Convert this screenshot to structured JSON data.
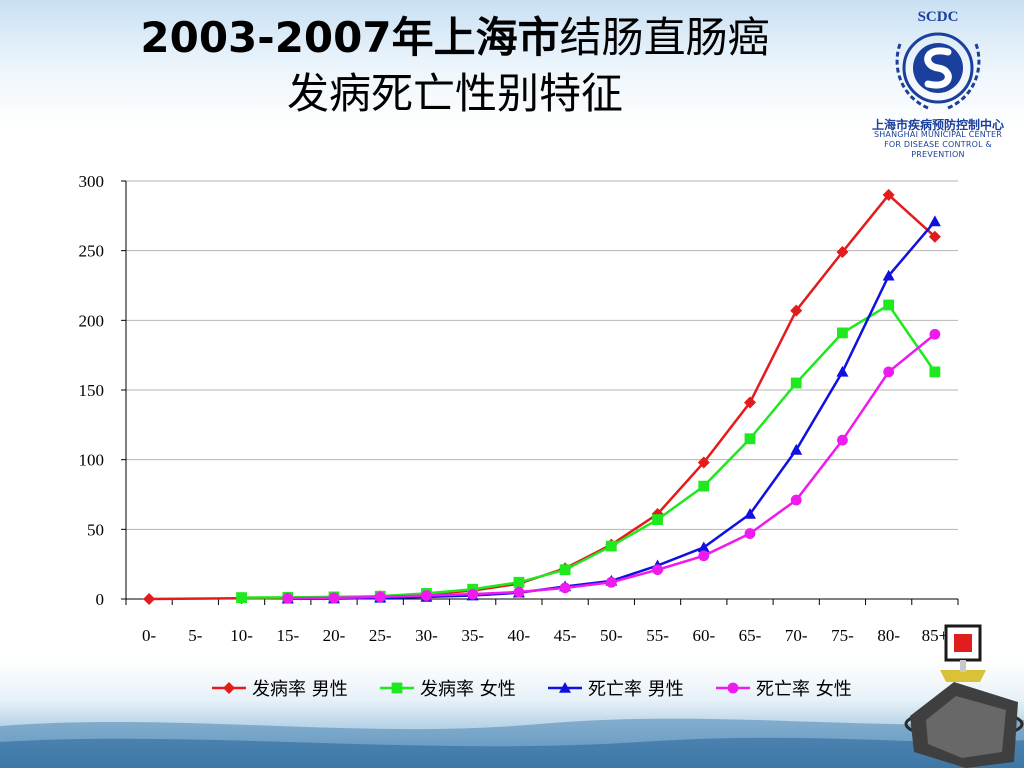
{
  "title": {
    "part1": "2003-2007年上海市",
    "part2": "结肠直肠癌",
    "line2": "发病死亡性别特征"
  },
  "logo": {
    "abbr": "SCDC",
    "name_cn": "上海市疾病预防控制中心",
    "name_en_1": "SHANGHAI MUNICIPAL CENTER",
    "name_en_2": "FOR DISEASE CONTROL & PREVENTION",
    "accent": "#1b3f9c"
  },
  "chart_data": {
    "type": "line",
    "title": "",
    "xlabel": "",
    "ylabel": "",
    "categories": [
      "0-",
      "5-",
      "10-",
      "15-",
      "20-",
      "25-",
      "30-",
      "35-",
      "40-",
      "45-",
      "50-",
      "55-",
      "60-",
      "65-",
      "70-",
      "75-",
      "80-",
      "85+"
    ],
    "ylim": [
      0,
      300
    ],
    "yticks": [
      "0",
      "50",
      "100",
      "150",
      "200",
      "250",
      "300"
    ],
    "grid": true,
    "legend_position": "bottom",
    "series": [
      {
        "name": "发病率 男性",
        "color": "#e31b1b",
        "marker": "diamond",
        "values": [
          0,
          null,
          0.5,
          0.8,
          1.0,
          2.0,
          3.5,
          6.0,
          11,
          22,
          39,
          61,
          98,
          141,
          207,
          249,
          290,
          260
        ]
      },
      {
        "name": "发病率 女性",
        "color": "#1ee81e",
        "marker": "square",
        "values": [
          null,
          null,
          1.0,
          1.2,
          1.5,
          2.0,
          4.0,
          7.0,
          12,
          21,
          38,
          57,
          81,
          115,
          155,
          191,
          211,
          163
        ]
      },
      {
        "name": "死亡率 男性",
        "color": "#1010e0",
        "marker": "triangle",
        "values": [
          null,
          null,
          null,
          0.2,
          0.3,
          0.8,
          1.5,
          2.5,
          4.5,
          9,
          13,
          24,
          37,
          61,
          107,
          163,
          232,
          271
        ]
      },
      {
        "name": "死亡率 女性",
        "color": "#ee1aee",
        "marker": "circle",
        "values": [
          null,
          null,
          null,
          0.5,
          0.8,
          1.5,
          2.5,
          3.5,
          5,
          8,
          12,
          21,
          31,
          47,
          71,
          114,
          163,
          190
        ]
      }
    ]
  }
}
